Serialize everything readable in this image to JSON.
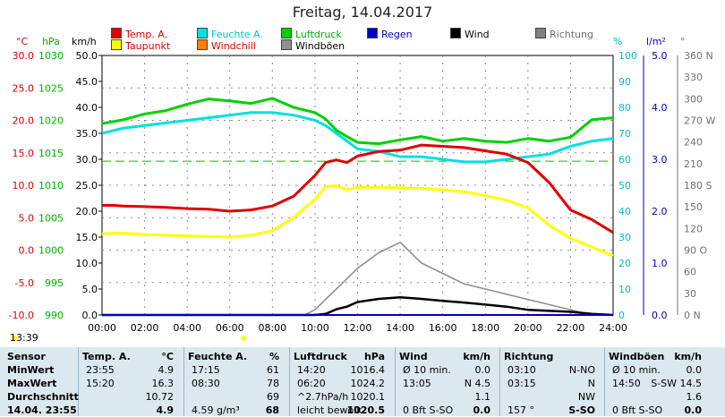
{
  "title": "Freitag, 14.04.2017",
  "time_marker": "13:39",
  "axis_units": {
    "temp": "°C",
    "hpa": "hPa",
    "kmh": "km/h",
    "pct": "%",
    "rain": "l/m²",
    "deg": "°"
  },
  "legend": [
    {
      "label": "Temp. A.",
      "color": "#e00000"
    },
    {
      "label": "Feuchte A.",
      "color": "#00e0e0"
    },
    {
      "label": "Luftdruck",
      "color": "#00d000"
    },
    {
      "label": "Regen",
      "color": "#0000c0"
    },
    {
      "label": "Wind",
      "color": "#000000"
    },
    {
      "label": "Richtung",
      "color": "#808080"
    },
    {
      "label": "Taupunkt",
      "color": "#ffff00"
    },
    {
      "label": "Windchill",
      "color": "#ff8000"
    },
    {
      "label": "Windböen",
      "color": "#909090"
    }
  ],
  "chart_data": {
    "type": "line",
    "title": "Freitag, 14.04.2017",
    "x_ticks": [
      "00:00",
      "02:00",
      "04:00",
      "06:00",
      "08:00",
      "10:00",
      "12:00",
      "14:00",
      "16:00",
      "18:00",
      "20:00",
      "22:00",
      "24:00"
    ],
    "x_hours": [
      0,
      0.5,
      1,
      2,
      3,
      4,
      5,
      6,
      7,
      8,
      9,
      9.5,
      10,
      10.5,
      11,
      11.5,
      12,
      13,
      14,
      15,
      16,
      17,
      18,
      19,
      20,
      21,
      22,
      23,
      24
    ],
    "axes": {
      "temp": {
        "min": -10,
        "max": 30,
        "ticks": [
          "30.0",
          "25.0",
          "20.0",
          "15.0",
          "10.0",
          "5.0",
          "0.0",
          "-5.0",
          "-10.0"
        ],
        "color": "#e00000"
      },
      "hpa": {
        "min": 990,
        "max": 1030,
        "ticks": [
          "1030",
          "1025",
          "1020",
          "1015",
          "1010",
          "1005",
          "1000",
          "995",
          "990"
        ],
        "color": "#00b000"
      },
      "kmh": {
        "min": 0,
        "max": 50,
        "ticks": [
          "50.0",
          "45.0",
          "40.0",
          "35.0",
          "30.0",
          "25.0",
          "20.0",
          "15.0",
          "10.0",
          "5.0",
          "0.0"
        ],
        "color": "#000000"
      },
      "pct": {
        "min": 0,
        "max": 100,
        "ticks": [
          "100",
          "90",
          "80",
          "70",
          "60",
          "50",
          "40",
          "30",
          "20",
          "10",
          "0"
        ],
        "color": "#00c0c0"
      },
      "rain": {
        "min": 0,
        "max": 5,
        "ticks": [
          "5.0",
          "4.0",
          "3.0",
          "2.0",
          "1.0",
          "0.0"
        ],
        "color": "#0000c0"
      },
      "deg": {
        "min": 0,
        "max": 360,
        "ticks": [
          "360 N",
          "330",
          "300",
          "270 W",
          "240",
          "210",
          "180 S",
          "150",
          "120",
          "90 O",
          "60",
          "30",
          "0 N"
        ],
        "color": "#707070"
      }
    },
    "dashed_reference_temp": 13.7,
    "series": [
      {
        "name": "Temp. A.",
        "axis": "temp",
        "color": "#e00000",
        "values": [
          6.9,
          6.9,
          6.8,
          6.7,
          6.6,
          6.4,
          6.3,
          6.0,
          6.2,
          6.8,
          8.3,
          9.9,
          11.5,
          13.5,
          13.9,
          13.5,
          14.5,
          15.2,
          15.4,
          16.2,
          16.0,
          15.8,
          15.3,
          14.8,
          13.5,
          10.4,
          6.2,
          4.7,
          2.7
        ]
      },
      {
        "name": "Taupunkt",
        "axis": "temp",
        "color": "#ffff00",
        "values": [
          2.5,
          2.6,
          2.6,
          2.4,
          2.3,
          2.2,
          2.1,
          2.0,
          2.3,
          3.0,
          5.0,
          6.5,
          7.8,
          9.8,
          9.9,
          9.3,
          9.7,
          9.7,
          9.6,
          9.5,
          9.3,
          9.0,
          8.4,
          7.7,
          6.5,
          3.8,
          1.8,
          0.5,
          -0.9
        ]
      },
      {
        "name": "Feuchte A.",
        "axis": "pct",
        "color": "#00e0e0",
        "values": [
          70,
          71,
          72,
          73,
          74,
          75,
          76,
          77,
          78,
          78,
          77,
          76,
          75,
          73,
          70,
          67,
          64,
          63,
          61,
          61,
          60,
          59,
          59,
          60,
          61,
          62,
          65,
          67,
          68
        ]
      },
      {
        "name": "Luftdruck",
        "axis": "hpa",
        "color": "#00d000",
        "values": [
          1019.5,
          1019.8,
          1020.1,
          1021.0,
          1021.5,
          1022.5,
          1023.3,
          1023.0,
          1022.6,
          1023.4,
          1022.0,
          1021.6,
          1021.2,
          1020.2,
          1018.5,
          1017.5,
          1016.6,
          1016.4,
          1017.0,
          1017.5,
          1016.8,
          1017.2,
          1016.8,
          1016.6,
          1017.2,
          1016.8,
          1017.4,
          1020.1,
          1020.4
        ]
      },
      {
        "name": "Wind",
        "axis": "kmh",
        "color": "#000000",
        "values": [
          0,
          0,
          0,
          0,
          0,
          0,
          0,
          0,
          0,
          0,
          0,
          0,
          0,
          0.2,
          1.1,
          1.6,
          2.5,
          3.1,
          3.4,
          3.1,
          2.7,
          2.4,
          2.0,
          1.6,
          1.0,
          0.8,
          0.6,
          0.2,
          0
        ]
      },
      {
        "name": "Windböen",
        "axis": "kmh",
        "color": "#909090",
        "values": [
          0,
          0,
          0,
          0,
          0,
          0,
          0,
          0,
          0,
          0,
          0,
          0,
          1,
          3,
          5,
          7,
          9,
          12,
          14,
          10,
          8,
          6,
          5,
          4,
          3,
          2,
          1,
          0,
          0
        ]
      }
    ]
  },
  "table": {
    "headers": [
      {
        "title": "Sensor",
        "unit": ""
      },
      {
        "title": "Temp. A.",
        "unit": "°C"
      },
      {
        "title": "Feuchte A.",
        "unit": "%"
      },
      {
        "title": "Luftdruck",
        "unit": "hPa"
      },
      {
        "title": "Wind",
        "unit": "km/h"
      },
      {
        "title": "Richtung",
        "unit": ""
      },
      {
        "title": "Windböen",
        "unit": "km/h"
      }
    ],
    "rows": [
      {
        "label": "MinWert",
        "cells": [
          [
            "23:55",
            "4.9"
          ],
          [
            "17:15",
            "61"
          ],
          [
            "14:20",
            "1016.4"
          ],
          [
            "Ø 10 min.",
            "0.0"
          ],
          [
            "03:10",
            "N-NO"
          ],
          [
            "Ø 10 min.",
            "0.0"
          ]
        ]
      },
      {
        "label": "MaxWert",
        "cells": [
          [
            "15:20",
            "16.3"
          ],
          [
            "08:30",
            "78"
          ],
          [
            "06:20",
            "1024.2"
          ],
          [
            "13:05",
            "N 4.5"
          ],
          [
            "03:15",
            "N"
          ],
          [
            "14:50",
            "S-SW 14.5"
          ]
        ]
      },
      {
        "label": "Durchschnitt",
        "cells": [
          [
            "",
            "10.72"
          ],
          [
            "",
            "69"
          ],
          [
            "^2.7hPa/h",
            "1020.1"
          ],
          [
            "",
            "1.1"
          ],
          [
            "",
            "NW"
          ],
          [
            "",
            "1.6"
          ]
        ]
      },
      {
        "label": "14.04. 23:55",
        "cells": [
          [
            "",
            "4.9"
          ],
          [
            "4.59 g/m³",
            "68"
          ],
          [
            "leicht bewölk",
            "1020.5"
          ],
          [
            "0 Bft S-SO",
            "0.0"
          ],
          [
            "157 °",
            "S-SO"
          ],
          [
            "0 Bft S-SO",
            "0.0"
          ]
        ]
      }
    ]
  }
}
